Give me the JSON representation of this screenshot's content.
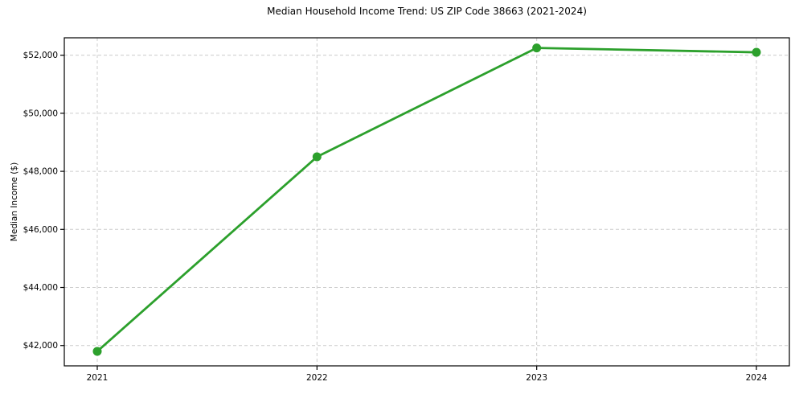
{
  "chart_data": {
    "type": "line",
    "title": "Median Household Income Trend: US ZIP Code 38663 (2021-2024)",
    "ylabel": "Median Income ($)",
    "xlabel": "",
    "x": [
      2021,
      2022,
      2023,
      2024
    ],
    "values": [
      41800,
      48500,
      52250,
      52100
    ],
    "series_name": "Median Household Income",
    "xticks": [
      2021,
      2022,
      2023,
      2024
    ],
    "xtick_labels": [
      "2021",
      "2022",
      "2023",
      "2024"
    ],
    "yticks": [
      42000,
      44000,
      46000,
      48000,
      50000,
      52000
    ],
    "ytick_labels": [
      "$42,000",
      "$44,000",
      "$46,000",
      "$48,000",
      "$50,000",
      "$52,000"
    ],
    "xlim": [
      2020.85,
      2024.15
    ],
    "ylim": [
      41300,
      52600
    ],
    "grid": true,
    "grid_style": "dashed",
    "legend": false,
    "line_color": "#2ca02c",
    "marker": "circle",
    "grid_color": "#cccccc",
    "spine_color": "#000000",
    "background_color": "#ffffff"
  }
}
